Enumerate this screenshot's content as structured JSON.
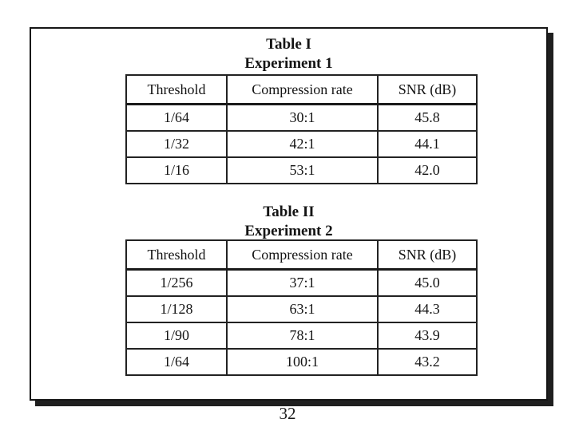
{
  "slide": {
    "page_number": "32"
  },
  "chart_data": [
    {
      "type": "table",
      "title": "Table I",
      "subtitle": "Experiment 1",
      "columns": [
        "Threshold",
        "Compression rate",
        "SNR (dB)"
      ],
      "rows": [
        [
          "1/64",
          "30:1",
          "45.8"
        ],
        [
          "1/32",
          "42:1",
          "44.1"
        ],
        [
          "1/16",
          "53:1",
          "42.0"
        ]
      ]
    },
    {
      "type": "table",
      "title": "Table II",
      "subtitle": "Experiment 2",
      "columns": [
        "Threshold",
        "Compression rate",
        "SNR (dB)"
      ],
      "rows": [
        [
          "1/256",
          "37:1",
          "45.0"
        ],
        [
          "1/128",
          "63:1",
          "44.3"
        ],
        [
          "1/90",
          "78:1",
          "43.9"
        ],
        [
          "1/64",
          "100:1",
          "43.2"
        ]
      ]
    }
  ],
  "colors": {
    "background": "#ffffff",
    "border": "#161616",
    "shadow": "#1f1f1f",
    "text": "#141414"
  }
}
